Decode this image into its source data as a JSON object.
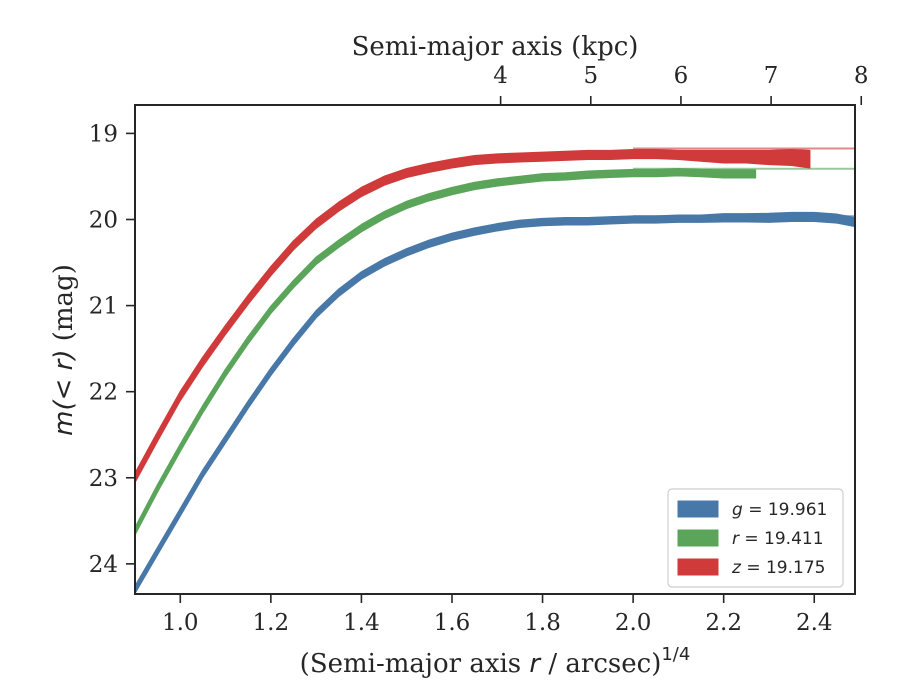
{
  "chart_data": {
    "type": "line",
    "top_axis": {
      "label": "Semi-major axis (kpc)",
      "ticks": [
        "4",
        "5",
        "6",
        "7",
        "8"
      ],
      "tick_values": [
        4,
        5,
        6,
        7,
        8
      ]
    },
    "xlabel": "(Semi-major axis r / arcsec)",
    "xlabel_prefix": "(Semi-major axis ",
    "xlabel_var": "r",
    "xlabel_suffix": " / arcsec)",
    "xlabel_superscript": "1/4",
    "ylabel": "m(< r) (mag)",
    "ylabel_math": "m(< r)",
    "ylabel_unit": " (mag)",
    "xlim": [
      0.9,
      2.49
    ],
    "ylim": [
      24.35,
      18.67
    ],
    "y_inverted": true,
    "xticks": [
      1.0,
      1.2,
      1.4,
      1.6,
      1.8,
      2.0,
      2.2,
      2.4
    ],
    "xtick_labels": [
      "1.0",
      "1.2",
      "1.4",
      "1.6",
      "1.8",
      "2.0",
      "2.2",
      "2.4"
    ],
    "yticks": [
      19,
      20,
      21,
      22,
      23,
      24
    ],
    "ytick_labels": [
      "19",
      "20",
      "21",
      "22",
      "23",
      "24"
    ],
    "grid": false,
    "legend_position": "lower-right",
    "series": [
      {
        "name": "g = 19.961",
        "band": "g",
        "total_label": "= 19.961",
        "total": 19.961,
        "color": "#4878a8",
        "x": [
          0.9,
          0.95,
          1.0,
          1.05,
          1.1,
          1.15,
          1.2,
          1.25,
          1.3,
          1.35,
          1.4,
          1.45,
          1.5,
          1.55,
          1.6,
          1.65,
          1.7,
          1.75,
          1.8,
          1.85,
          1.9,
          1.95,
          2.0,
          2.05,
          2.1,
          2.15,
          2.2,
          2.25,
          2.3,
          2.35,
          2.4,
          2.45,
          2.49
        ],
        "y": [
          24.3,
          23.85,
          23.4,
          22.95,
          22.55,
          22.15,
          21.77,
          21.42,
          21.1,
          20.85,
          20.65,
          20.5,
          20.38,
          20.28,
          20.2,
          20.14,
          20.09,
          20.05,
          20.03,
          20.02,
          20.02,
          20.01,
          20.0,
          20.0,
          19.99,
          19.99,
          19.98,
          19.98,
          19.98,
          19.97,
          19.97,
          19.99,
          20.03
        ],
        "band_halfwidth_mag": [
          0.04,
          0.04,
          0.04,
          0.04,
          0.04,
          0.04,
          0.04,
          0.04,
          0.04,
          0.04,
          0.04,
          0.04,
          0.04,
          0.04,
          0.04,
          0.04,
          0.04,
          0.04,
          0.04,
          0.04,
          0.04,
          0.04,
          0.04,
          0.04,
          0.04,
          0.04,
          0.045,
          0.045,
          0.05,
          0.05,
          0.05,
          0.05,
          0.05
        ]
      },
      {
        "name": "r = 19.411",
        "band": "r",
        "total_label": "= 19.411",
        "total": 19.411,
        "color": "#5aa55a",
        "x": [
          0.9,
          0.95,
          1.0,
          1.05,
          1.1,
          1.15,
          1.2,
          1.25,
          1.3,
          1.35,
          1.4,
          1.45,
          1.5,
          1.55,
          1.6,
          1.65,
          1.7,
          1.75,
          1.8,
          1.85,
          1.9,
          1.95,
          2.0,
          2.05,
          2.1,
          2.15,
          2.2,
          2.25,
          2.27
        ],
        "y": [
          23.62,
          23.12,
          22.65,
          22.2,
          21.78,
          21.4,
          21.05,
          20.75,
          20.48,
          20.28,
          20.1,
          19.95,
          19.83,
          19.74,
          19.67,
          19.61,
          19.57,
          19.54,
          19.51,
          19.5,
          19.48,
          19.47,
          19.46,
          19.46,
          19.45,
          19.46,
          19.47,
          19.47,
          19.47
        ],
        "band_halfwidth_mag": [
          0.04,
          0.04,
          0.04,
          0.04,
          0.04,
          0.04,
          0.04,
          0.04,
          0.04,
          0.04,
          0.04,
          0.04,
          0.04,
          0.04,
          0.04,
          0.04,
          0.04,
          0.04,
          0.04,
          0.04,
          0.04,
          0.04,
          0.04,
          0.04,
          0.04,
          0.04,
          0.045,
          0.045,
          0.045
        ]
      },
      {
        "name": "z = 19.175",
        "band": "z",
        "total_label": "= 19.175",
        "total": 19.175,
        "color": "#d03a3a",
        "x": [
          0.9,
          0.95,
          1.0,
          1.05,
          1.1,
          1.15,
          1.2,
          1.25,
          1.3,
          1.35,
          1.4,
          1.45,
          1.5,
          1.55,
          1.6,
          1.65,
          1.7,
          1.75,
          1.8,
          1.85,
          1.9,
          1.95,
          2.0,
          2.05,
          2.1,
          2.15,
          2.2,
          2.25,
          2.3,
          2.35,
          2.39
        ],
        "y": [
          23.0,
          22.52,
          22.05,
          21.65,
          21.28,
          20.93,
          20.6,
          20.3,
          20.05,
          19.85,
          19.68,
          19.55,
          19.46,
          19.4,
          19.35,
          19.31,
          19.29,
          19.28,
          19.27,
          19.26,
          19.25,
          19.25,
          19.24,
          19.24,
          19.25,
          19.26,
          19.27,
          19.27,
          19.28,
          19.28,
          19.3
        ],
        "band_halfwidth_mag": [
          0.05,
          0.05,
          0.05,
          0.05,
          0.05,
          0.05,
          0.05,
          0.05,
          0.05,
          0.05,
          0.05,
          0.05,
          0.05,
          0.05,
          0.05,
          0.05,
          0.05,
          0.05,
          0.05,
          0.05,
          0.05,
          0.05,
          0.05,
          0.05,
          0.05,
          0.06,
          0.07,
          0.07,
          0.08,
          0.09,
          0.1
        ]
      }
    ]
  }
}
